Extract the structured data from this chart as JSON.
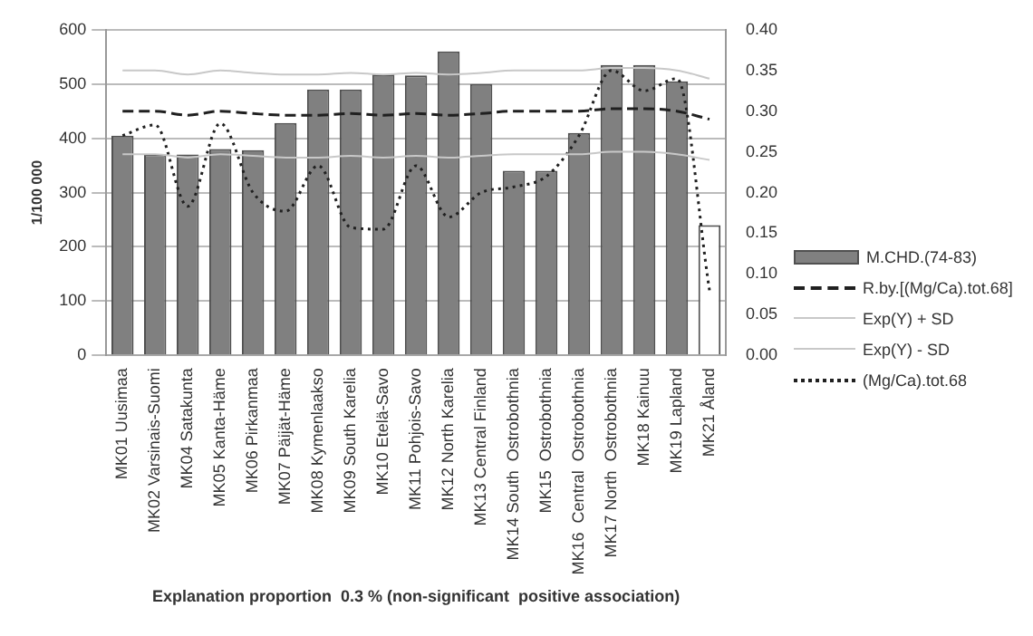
{
  "chart_data": {
    "type": "bar",
    "xlabel": "Explanation proportion  0.3 % (non-significant  positive association)",
    "ylabel": "1/100 000",
    "categories": [
      "MK01 Uusimaa",
      "MK02 Varsinais-Suomi",
      "MK04 Satakunta",
      "MK05 Kanta-Häme",
      "MK06 Pirkanmaa",
      "MK07 Päijät-Häme",
      "MK08 Kymenlaakso",
      "MK09 South Karelia",
      "MK10 Etelä-Savo",
      "MK11 Pohjois-Savo",
      "MK12 North Karelia",
      "MK13 Central Finland",
      "MK14 South  Ostrobothnia",
      "MK15  Ostrobothnia",
      "MK16  Central  Ostrobothnia",
      "MK17 North  Ostrobothnia",
      "MK18 Kainuu",
      "MK19 Lapland",
      "MK21 Åland"
    ],
    "series": [
      {
        "name": "M.CHD.(74-83)",
        "color": "#808080",
        "colors": [
          "#808080",
          "#808080",
          "#808080",
          "#808080",
          "#808080",
          "#808080",
          "#808080",
          "#808080",
          "#808080",
          "#808080",
          "#808080",
          "#808080",
          "#808080",
          "#808080",
          "#808080",
          "#808080",
          "#808080",
          "#808080",
          "#ffffff"
        ],
        "values": [
          405,
          370,
          370,
          380,
          378,
          428,
          490,
          490,
          518,
          516,
          560,
          500,
          340,
          340,
          410,
          535,
          535,
          505,
          240
        ]
      },
      {
        "name": "R.by.[(Mg/Ca).tot.68]",
        "type": "line",
        "axis": "y2",
        "color": "#202020",
        "line_style": "dashed",
        "values": [
          0.3,
          0.3,
          0.295,
          0.3,
          0.297,
          0.295,
          0.295,
          0.297,
          0.295,
          0.297,
          0.295,
          0.297,
          0.3,
          0.3,
          0.3,
          0.303,
          0.303,
          0.3,
          0.29
        ]
      },
      {
        "name": "Exp(Y) + SD",
        "type": "line",
        "axis": "y2",
        "color": "#c8c8c8",
        "line_style": "solid",
        "values": [
          0.35,
          0.35,
          0.345,
          0.35,
          0.347,
          0.345,
          0.345,
          0.347,
          0.345,
          0.347,
          0.345,
          0.347,
          0.35,
          0.35,
          0.35,
          0.353,
          0.353,
          0.35,
          0.34
        ]
      },
      {
        "name": "Exp(Y) - SD",
        "type": "line",
        "axis": "y2",
        "color": "#c8c8c8",
        "line_style": "solid",
        "values": [
          0.247,
          0.247,
          0.243,
          0.247,
          0.245,
          0.243,
          0.243,
          0.245,
          0.243,
          0.245,
          0.243,
          0.245,
          0.247,
          0.247,
          0.247,
          0.25,
          0.25,
          0.247,
          0.24
        ]
      },
      {
        "name": "(Mg/Ca).tot.68",
        "type": "line",
        "axis": "y2",
        "color": "#202020",
        "line_style": "dotted",
        "values": [
          0.27,
          0.283,
          0.183,
          0.285,
          0.2,
          0.177,
          0.233,
          0.157,
          0.155,
          0.233,
          0.17,
          0.2,
          0.207,
          0.22,
          0.27,
          0.35,
          0.325,
          0.34,
          0.08
        ]
      }
    ],
    "ylim": [
      0,
      600
    ],
    "yticks": [
      0,
      100,
      200,
      300,
      400,
      500,
      600
    ],
    "y2lim": [
      0,
      0.4
    ],
    "y2ticks": [
      {
        "value": 0,
        "label": "0.00"
      },
      0.05,
      {
        "value": 0.1,
        "label": "0.10"
      },
      0.15,
      {
        "value": 0.2,
        "label": "0.20"
      },
      0.25,
      {
        "value": 0.3,
        "label": "0.30"
      },
      0.35,
      {
        "value": 0.4,
        "label": "0.40"
      }
    ],
    "grid": "y",
    "legend": "right",
    "marker": "none"
  }
}
